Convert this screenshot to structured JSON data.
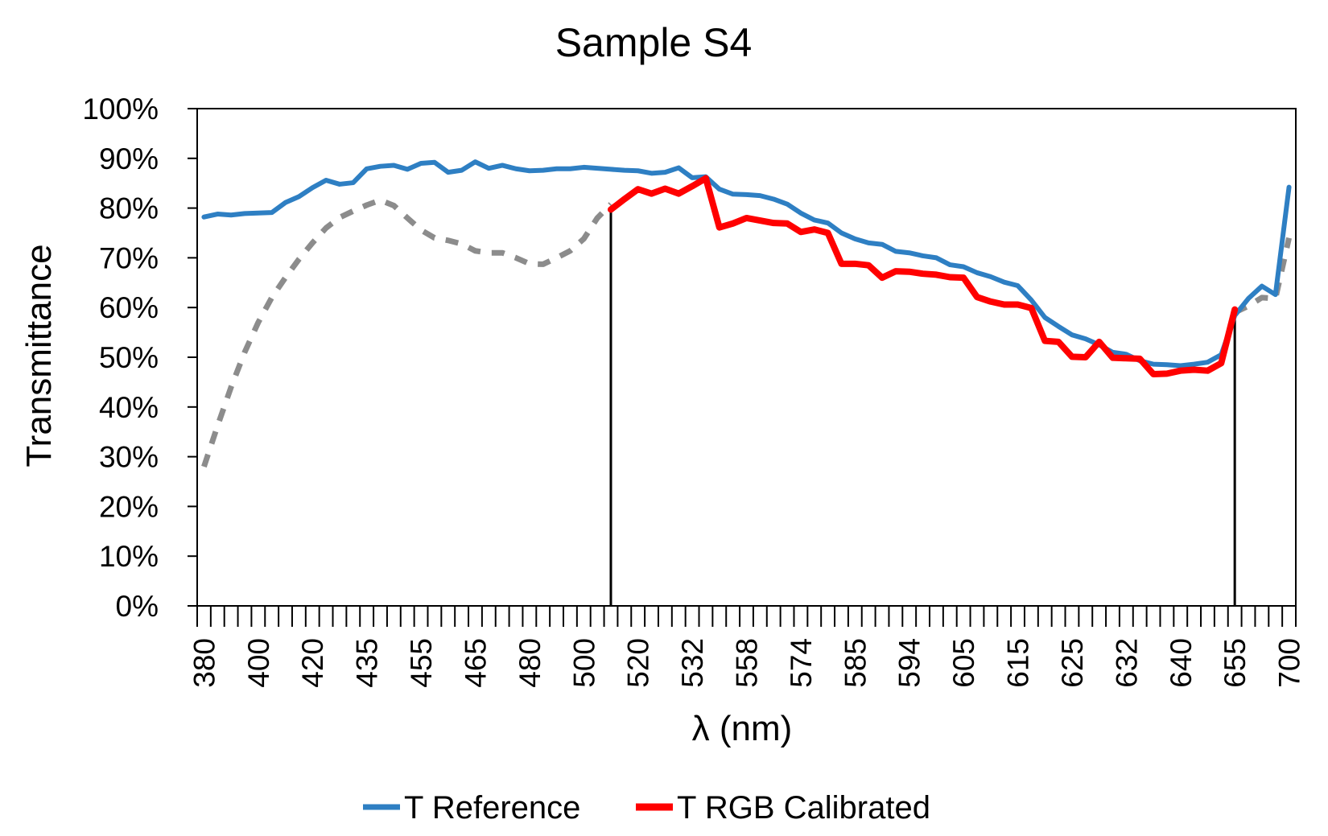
{
  "chart_data": {
    "type": "line",
    "title": "Sample S4",
    "xlabel": "λ (nm)",
    "ylabel": "Transmittance",
    "ylim": [
      0,
      100
    ],
    "y_ticks": [
      "0%",
      "10%",
      "20%",
      "30%",
      "40%",
      "50%",
      "60%",
      "70%",
      "80%",
      "90%",
      "100%"
    ],
    "x_tick_labels": [
      "380",
      "400",
      "420",
      "435",
      "455",
      "465",
      "480",
      "500",
      "520",
      "532",
      "558",
      "574",
      "585",
      "594",
      "605",
      "615",
      "625",
      "632",
      "640",
      "655",
      "700"
    ],
    "x_count": 81,
    "markers": {
      "lower_index": 30,
      "upper_index": 76
    },
    "series": [
      {
        "name": "T Reference",
        "color": "#2e7fc3",
        "style": "solid",
        "show_in_legend": true,
        "values": [
          78.2,
          78.8,
          78.6,
          78.9,
          79.0,
          79.1,
          81.1,
          82.3,
          84.1,
          85.6,
          84.8,
          85.1,
          87.9,
          88.4,
          88.6,
          87.8,
          89.0,
          89.2,
          87.2,
          87.6,
          89.3,
          88.0,
          88.6,
          87.9,
          87.5,
          87.6,
          87.9,
          87.9,
          88.2,
          88.0,
          87.8,
          87.6,
          87.5,
          87.0,
          87.2,
          88.1,
          86.1,
          86.3,
          83.8,
          82.8,
          82.7,
          82.5,
          81.8,
          80.8,
          79.0,
          77.6,
          77.0,
          75.0,
          73.8,
          73.0,
          72.7,
          71.3,
          71.0,
          70.4,
          70.0,
          68.6,
          68.2,
          67.0,
          66.2,
          65.1,
          64.4,
          61.5,
          58.0,
          56.2,
          54.5,
          53.7,
          52.5,
          51.0,
          50.6,
          49.3,
          48.6,
          48.5,
          48.3,
          48.6,
          49.0,
          50.5,
          58.4,
          61.8,
          64.3,
          62.6,
          84.2
        ]
      },
      {
        "name": "T RGB Calibrated",
        "color": "#ff0000",
        "style": "thick",
        "show_in_legend": true,
        "start_index": 30,
        "values": [
          79.7,
          81.8,
          83.8,
          82.9,
          83.9,
          82.9,
          84.4,
          86.0,
          76.1,
          76.9,
          78.0,
          77.5,
          77.0,
          76.9,
          75.2,
          75.7,
          75.0,
          68.8,
          68.8,
          68.5,
          66.0,
          67.3,
          67.2,
          66.8,
          66.6,
          66.1,
          66.0,
          62.1,
          61.2,
          60.6,
          60.6,
          59.9,
          53.3,
          53.1,
          50.1,
          50.0,
          53.1,
          49.9,
          49.8,
          49.7,
          46.6,
          46.7,
          47.3,
          47.5,
          47.3,
          48.8,
          59.6
        ]
      },
      {
        "name": "Estimated (dashed)",
        "color": "#8c8c8c",
        "style": "dashed",
        "show_in_legend": false,
        "values": [
          28.0,
          36.2,
          44.0,
          51.0,
          57.0,
          62.0,
          66.0,
          69.7,
          73.0,
          76.0,
          78.1,
          79.4,
          80.6,
          81.6,
          80.5,
          78.0,
          75.6,
          74.0,
          73.5,
          72.8,
          71.4,
          71.0,
          71.0,
          70.0,
          68.8,
          68.7,
          70.0,
          71.4,
          73.8,
          78.0,
          80.8,
          null,
          null,
          null,
          null,
          null,
          null,
          null,
          null,
          null,
          null,
          null,
          null,
          null,
          null,
          null,
          null,
          null,
          null,
          null,
          null,
          null,
          null,
          null,
          null,
          null,
          null,
          null,
          null,
          null,
          null,
          null,
          null,
          null,
          null,
          null,
          null,
          null,
          null,
          null,
          null,
          null,
          null,
          null,
          null,
          null,
          59.0,
          60.3,
          62.0,
          61.8,
          74.0
        ]
      }
    ]
  }
}
